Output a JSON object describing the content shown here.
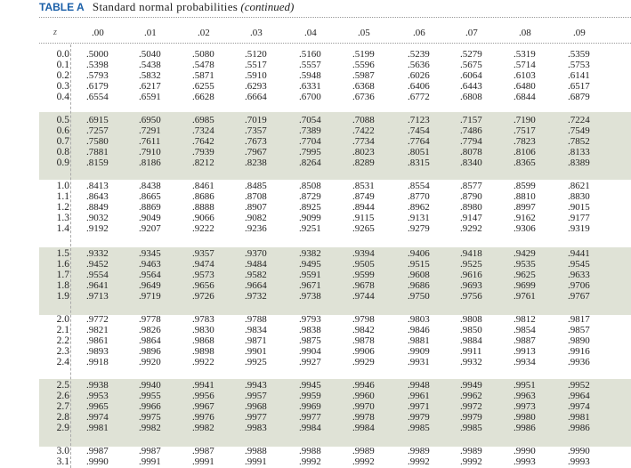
{
  "title": {
    "label": "TABLE A",
    "main": "Standard normal probabilities",
    "paren": "(continued)"
  },
  "table": {
    "z_header": "z",
    "columns": [
      ".00",
      ".01",
      ".02",
      ".03",
      ".04",
      ".05",
      ".06",
      ".07",
      ".08",
      ".09"
    ],
    "rows": [
      {
        "z": "0.0",
        "values": [
          ".5000",
          ".5040",
          ".5080",
          ".5120",
          ".5160",
          ".5199",
          ".5239",
          ".5279",
          ".5319",
          ".5359"
        ]
      },
      {
        "z": "0.1",
        "values": [
          ".5398",
          ".5438",
          ".5478",
          ".5517",
          ".5557",
          ".5596",
          ".5636",
          ".5675",
          ".5714",
          ".5753"
        ]
      },
      {
        "z": "0.2",
        "values": [
          ".5793",
          ".5832",
          ".5871",
          ".5910",
          ".5948",
          ".5987",
          ".6026",
          ".6064",
          ".6103",
          ".6141"
        ]
      },
      {
        "z": "0.3",
        "values": [
          ".6179",
          ".6217",
          ".6255",
          ".6293",
          ".6331",
          ".6368",
          ".6406",
          ".6443",
          ".6480",
          ".6517"
        ]
      },
      {
        "z": "0.4",
        "values": [
          ".6554",
          ".6591",
          ".6628",
          ".6664",
          ".6700",
          ".6736",
          ".6772",
          ".6808",
          ".6844",
          ".6879"
        ]
      },
      {
        "z": "0.5",
        "values": [
          ".6915",
          ".6950",
          ".6985",
          ".7019",
          ".7054",
          ".7088",
          ".7123",
          ".7157",
          ".7190",
          ".7224"
        ]
      },
      {
        "z": "0.6",
        "values": [
          ".7257",
          ".7291",
          ".7324",
          ".7357",
          ".7389",
          ".7422",
          ".7454",
          ".7486",
          ".7517",
          ".7549"
        ]
      },
      {
        "z": "0.7",
        "values": [
          ".7580",
          ".7611",
          ".7642",
          ".7673",
          ".7704",
          ".7734",
          ".7764",
          ".7794",
          ".7823",
          ".7852"
        ]
      },
      {
        "z": "0.8",
        "values": [
          ".7881",
          ".7910",
          ".7939",
          ".7967",
          ".7995",
          ".8023",
          ".8051",
          ".8078",
          ".8106",
          ".8133"
        ]
      },
      {
        "z": "0.9",
        "values": [
          ".8159",
          ".8186",
          ".8212",
          ".8238",
          ".8264",
          ".8289",
          ".8315",
          ".8340",
          ".8365",
          ".8389"
        ]
      },
      {
        "z": "1.0",
        "values": [
          ".8413",
          ".8438",
          ".8461",
          ".8485",
          ".8508",
          ".8531",
          ".8554",
          ".8577",
          ".8599",
          ".8621"
        ]
      },
      {
        "z": "1.1",
        "values": [
          ".8643",
          ".8665",
          ".8686",
          ".8708",
          ".8729",
          ".8749",
          ".8770",
          ".8790",
          ".8810",
          ".8830"
        ]
      },
      {
        "z": "1.2",
        "values": [
          ".8849",
          ".8869",
          ".8888",
          ".8907",
          ".8925",
          ".8944",
          ".8962",
          ".8980",
          ".8997",
          ".9015"
        ]
      },
      {
        "z": "1.3",
        "values": [
          ".9032",
          ".9049",
          ".9066",
          ".9082",
          ".9099",
          ".9115",
          ".9131",
          ".9147",
          ".9162",
          ".9177"
        ]
      },
      {
        "z": "1.4",
        "values": [
          ".9192",
          ".9207",
          ".9222",
          ".9236",
          ".9251",
          ".9265",
          ".9279",
          ".9292",
          ".9306",
          ".9319"
        ]
      },
      {
        "z": "1.5",
        "values": [
          ".9332",
          ".9345",
          ".9357",
          ".9370",
          ".9382",
          ".9394",
          ".9406",
          ".9418",
          ".9429",
          ".9441"
        ]
      },
      {
        "z": "1.6",
        "values": [
          ".9452",
          ".9463",
          ".9474",
          ".9484",
          ".9495",
          ".9505",
          ".9515",
          ".9525",
          ".9535",
          ".9545"
        ]
      },
      {
        "z": "1.7",
        "values": [
          ".9554",
          ".9564",
          ".9573",
          ".9582",
          ".9591",
          ".9599",
          ".9608",
          ".9616",
          ".9625",
          ".9633"
        ]
      },
      {
        "z": "1.8",
        "values": [
          ".9641",
          ".9649",
          ".9656",
          ".9664",
          ".9671",
          ".9678",
          ".9686",
          ".9693",
          ".9699",
          ".9706"
        ]
      },
      {
        "z": "1.9",
        "values": [
          ".9713",
          ".9719",
          ".9726",
          ".9732",
          ".9738",
          ".9744",
          ".9750",
          ".9756",
          ".9761",
          ".9767"
        ]
      },
      {
        "z": "2.0",
        "values": [
          ".9772",
          ".9778",
          ".9783",
          ".9788",
          ".9793",
          ".9798",
          ".9803",
          ".9808",
          ".9812",
          ".9817"
        ]
      },
      {
        "z": "2.1",
        "values": [
          ".9821",
          ".9826",
          ".9830",
          ".9834",
          ".9838",
          ".9842",
          ".9846",
          ".9850",
          ".9854",
          ".9857"
        ]
      },
      {
        "z": "2.2",
        "values": [
          ".9861",
          ".9864",
          ".9868",
          ".9871",
          ".9875",
          ".9878",
          ".9881",
          ".9884",
          ".9887",
          ".9890"
        ]
      },
      {
        "z": "2.3",
        "values": [
          ".9893",
          ".9896",
          ".9898",
          ".9901",
          ".9904",
          ".9906",
          ".9909",
          ".9911",
          ".9913",
          ".9916"
        ]
      },
      {
        "z": "2.4",
        "values": [
          ".9918",
          ".9920",
          ".9922",
          ".9925",
          ".9927",
          ".9929",
          ".9931",
          ".9932",
          ".9934",
          ".9936"
        ]
      },
      {
        "z": "2.5",
        "values": [
          ".9938",
          ".9940",
          ".9941",
          ".9943",
          ".9945",
          ".9946",
          ".9948",
          ".9949",
          ".9951",
          ".9952"
        ]
      },
      {
        "z": "2.6",
        "values": [
          ".9953",
          ".9955",
          ".9956",
          ".9957",
          ".9959",
          ".9960",
          ".9961",
          ".9962",
          ".9963",
          ".9964"
        ]
      },
      {
        "z": "2.7",
        "values": [
          ".9965",
          ".9966",
          ".9967",
          ".9968",
          ".9969",
          ".9970",
          ".9971",
          ".9972",
          ".9973",
          ".9974"
        ]
      },
      {
        "z": "2.8",
        "values": [
          ".9974",
          ".9975",
          ".9976",
          ".9977",
          ".9977",
          ".9978",
          ".9979",
          ".9979",
          ".9980",
          ".9981"
        ]
      },
      {
        "z": "2.9",
        "values": [
          ".9981",
          ".9982",
          ".9982",
          ".9983",
          ".9984",
          ".9984",
          ".9985",
          ".9985",
          ".9986",
          ".9986"
        ]
      },
      {
        "z": "3.0",
        "values": [
          ".9987",
          ".9987",
          ".9987",
          ".9988",
          ".9988",
          ".9989",
          ".9989",
          ".9989",
          ".9990",
          ".9990"
        ]
      },
      {
        "z": "3.1",
        "values": [
          ".9990",
          ".9991",
          ".9991",
          ".9991",
          ".9992",
          ".9992",
          ".9992",
          ".9992",
          ".9993",
          ".9993"
        ]
      }
    ]
  }
}
